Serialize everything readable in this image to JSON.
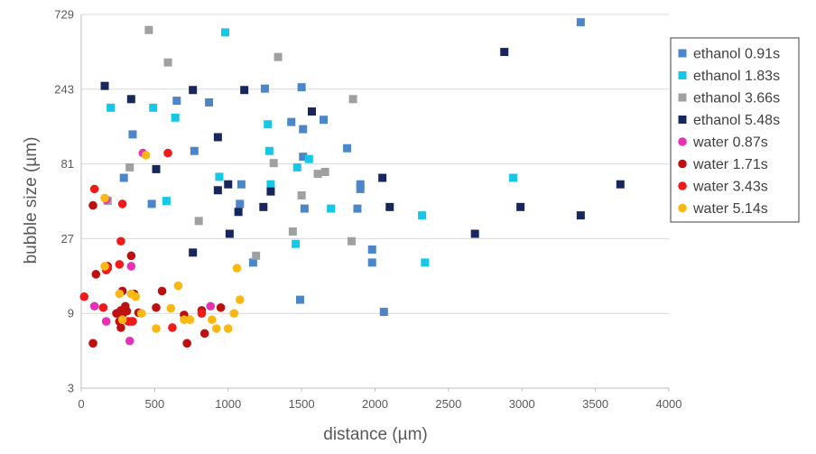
{
  "chart_data": {
    "type": "scatter",
    "xlabel": "distance (µm)",
    "ylabel": "bubble size (µm)",
    "xlim": [
      0,
      4000
    ],
    "ylim": [
      3,
      729
    ],
    "y_scale": "log3",
    "x_ticks": [
      "0",
      "500",
      "1000",
      "1500",
      "2000",
      "2500",
      "3000",
      "3500",
      "4000"
    ],
    "y_ticks": [
      "3",
      "9",
      "27",
      "81",
      "243",
      "729"
    ],
    "x_tick_values": [
      0,
      500,
      1000,
      1500,
      2000,
      2500,
      3000,
      3500,
      4000
    ],
    "y_tick_values": [
      3,
      9,
      27,
      81,
      243,
      729
    ],
    "grid": "horizontal",
    "legend_position": "right",
    "series": [
      {
        "name": "ethanol 0.91s",
        "marker": "square",
        "color": "#4a86c8",
        "points": [
          [
            290,
            66
          ],
          [
            480,
            45
          ],
          [
            350,
            125
          ],
          [
            650,
            205
          ],
          [
            770,
            98
          ],
          [
            870,
            200
          ],
          [
            1090,
            60
          ],
          [
            1080,
            45
          ],
          [
            1170,
            19
          ],
          [
            1250,
            245
          ],
          [
            1430,
            150
          ],
          [
            1500,
            250
          ],
          [
            1510,
            135
          ],
          [
            1510,
            90
          ],
          [
            1520,
            42
          ],
          [
            1650,
            155
          ],
          [
            1810,
            102
          ],
          [
            1880,
            42
          ],
          [
            1900,
            60
          ],
          [
            1900,
            56
          ],
          [
            1980,
            23
          ],
          [
            1980,
            19
          ],
          [
            1490,
            11
          ],
          [
            2060,
            9.2
          ],
          [
            3400,
            650
          ]
        ]
      },
      {
        "name": "ethanol 1.83s",
        "marker": "square",
        "color": "#17c7e6",
        "points": [
          [
            200,
            185
          ],
          [
            490,
            185
          ],
          [
            580,
            47
          ],
          [
            640,
            160
          ],
          [
            940,
            67
          ],
          [
            980,
            560
          ],
          [
            1270,
            145
          ],
          [
            1280,
            98
          ],
          [
            1290,
            60
          ],
          [
            1460,
            25
          ],
          [
            1470,
            77
          ],
          [
            1550,
            87
          ],
          [
            1700,
            42
          ],
          [
            2320,
            38
          ],
          [
            2340,
            19
          ],
          [
            2940,
            66
          ]
        ]
      },
      {
        "name": "ethanol 3.66s",
        "marker": "square",
        "color": "#a0a0a0",
        "points": [
          [
            180,
            47
          ],
          [
            330,
            77
          ],
          [
            460,
            580
          ],
          [
            590,
            360
          ],
          [
            800,
            35
          ],
          [
            1190,
            21
          ],
          [
            1310,
            82
          ],
          [
            1340,
            390
          ],
          [
            1440,
            30
          ],
          [
            1500,
            51
          ],
          [
            1610,
            70
          ],
          [
            1660,
            72
          ],
          [
            1840,
            26
          ],
          [
            1850,
            210
          ]
        ]
      },
      {
        "name": "ethanol 5.48s",
        "marker": "square",
        "color": "#17275e",
        "points": [
          [
            160,
            255
          ],
          [
            340,
            210
          ],
          [
            510,
            75
          ],
          [
            760,
            22
          ],
          [
            760,
            240
          ],
          [
            930,
            120
          ],
          [
            930,
            55
          ],
          [
            1000,
            60
          ],
          [
            1010,
            29
          ],
          [
            1070,
            40
          ],
          [
            1110,
            240
          ],
          [
            1240,
            43
          ],
          [
            1290,
            54
          ],
          [
            1570,
            175
          ],
          [
            2050,
            66
          ],
          [
            2100,
            43
          ],
          [
            2680,
            29
          ],
          [
            2880,
            420
          ],
          [
            2990,
            43
          ],
          [
            3400,
            38
          ],
          [
            3670,
            60
          ]
        ]
      },
      {
        "name": "water 0.87s",
        "marker": "circle",
        "color": "#e631b4",
        "points": [
          [
            90,
            10
          ],
          [
            170,
            8
          ],
          [
            330,
            6
          ],
          [
            340,
            18
          ],
          [
            420,
            95
          ],
          [
            880,
            10
          ],
          [
            170,
            48
          ]
        ]
      },
      {
        "name": "water 1.71s",
        "marker": "circle",
        "color": "#bf1010",
        "points": [
          [
            80,
            5.8
          ],
          [
            100,
            16
          ],
          [
            80,
            44
          ],
          [
            180,
            18
          ],
          [
            240,
            9
          ],
          [
            260,
            8
          ],
          [
            270,
            7.3
          ],
          [
            270,
            9.4
          ],
          [
            280,
            8.8
          ],
          [
            280,
            12.5
          ],
          [
            300,
            10
          ],
          [
            310,
            9.3
          ],
          [
            340,
            8
          ],
          [
            360,
            12
          ],
          [
            390,
            9.1
          ],
          [
            510,
            9.8
          ],
          [
            550,
            12.5
          ],
          [
            700,
            8.8
          ],
          [
            720,
            5.8
          ],
          [
            820,
            9.4
          ],
          [
            840,
            6.7
          ],
          [
            950,
            9.8
          ],
          [
            340,
            21
          ]
        ]
      },
      {
        "name": "water 3.43s",
        "marker": "circle",
        "color": "#ef1a1a",
        "points": [
          [
            20,
            11.5
          ],
          [
            90,
            56
          ],
          [
            150,
            9.8
          ],
          [
            170,
            17
          ],
          [
            180,
            17.5
          ],
          [
            260,
            18.5
          ],
          [
            270,
            26
          ],
          [
            280,
            45
          ],
          [
            320,
            8
          ],
          [
            350,
            8
          ],
          [
            590,
            95
          ],
          [
            620,
            7.3
          ],
          [
            820,
            9
          ]
        ]
      },
      {
        "name": "water 5.14s",
        "marker": "circle",
        "color": "#fab814",
        "points": [
          [
            160,
            49
          ],
          [
            160,
            18
          ],
          [
            260,
            12
          ],
          [
            280,
            8.2
          ],
          [
            370,
            11.5
          ],
          [
            410,
            9
          ],
          [
            440,
            92
          ],
          [
            510,
            7.2
          ],
          [
            610,
            9.7
          ],
          [
            660,
            13.5
          ],
          [
            700,
            8.2
          ],
          [
            740,
            8.2
          ],
          [
            890,
            8.2
          ],
          [
            920,
            7.2
          ],
          [
            1000,
            7.2
          ],
          [
            1040,
            9
          ],
          [
            1060,
            17.5
          ],
          [
            1080,
            11
          ],
          [
            340,
            12
          ]
        ]
      }
    ]
  }
}
